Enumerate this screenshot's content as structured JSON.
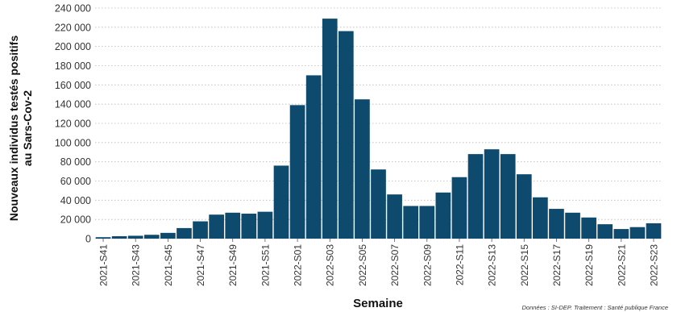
{
  "chart_data": {
    "type": "bar",
    "xlabel": "Semaine",
    "ylabel_lines": [
      "Nouveaux individus testés positifs",
      "au Sars-Cov-2"
    ],
    "source": "Données : SI-DEP. Traitement : Santé publique France",
    "ylim": [
      0,
      240000
    ],
    "yticks": [
      0,
      20000,
      40000,
      60000,
      80000,
      100000,
      120000,
      140000,
      160000,
      180000,
      200000,
      220000,
      240000
    ],
    "ytick_labels": [
      "0",
      "20 000",
      "40 000",
      "60 000",
      "80 000",
      "100 000",
      "120 000",
      "140 000",
      "160 000",
      "180 000",
      "200 000",
      "220 000",
      "240 000"
    ],
    "grid": true,
    "bar_color": "#0d4a6e",
    "categories": [
      "2021-S41",
      "2021-S42",
      "2021-S43",
      "2021-S44",
      "2021-S45",
      "2021-S46",
      "2021-S47",
      "2021-S48",
      "2021-S49",
      "2021-S50",
      "2021-S51",
      "2021-S52",
      "2022-S01",
      "2022-S02",
      "2022-S03",
      "2022-S04",
      "2022-S05",
      "2022-S06",
      "2022-S07",
      "2022-S08",
      "2022-S09",
      "2022-S10",
      "2022-S11",
      "2022-S12",
      "2022-S13",
      "2022-S14",
      "2022-S15",
      "2022-S16",
      "2022-S17",
      "2022-S18",
      "2022-S19",
      "2022-S20",
      "2022-S21",
      "2022-S22",
      "2022-S23"
    ],
    "xtick_labels": [
      "2021-S41",
      "2021-S43",
      "2021-S45",
      "2021-S47",
      "2021-S49",
      "2021-S51",
      "2022-S01",
      "2022-S03",
      "2022-S05",
      "2022-S07",
      "2022-S09",
      "2022-S11",
      "2022-S13",
      "2022-S15",
      "2022-S17",
      "2022-S19",
      "2022-S21",
      "2022-S23"
    ],
    "values": [
      1500,
      2500,
      3000,
      4000,
      6000,
      11000,
      18000,
      25000,
      27000,
      26000,
      28000,
      76000,
      139000,
      170000,
      229000,
      216000,
      145000,
      72000,
      46000,
      34000,
      34000,
      48000,
      64000,
      88000,
      93000,
      88000,
      67000,
      43000,
      31000,
      27000,
      22000,
      15000,
      10000,
      12000,
      16000
    ]
  }
}
